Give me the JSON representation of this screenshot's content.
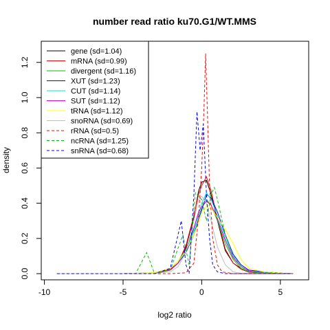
{
  "chart_data": {
    "type": "line",
    "title": "number read ratio ku70.G1/WT.MMS",
    "xlabel": "log2 ratio",
    "ylabel": "density",
    "xlim": [
      -10.2,
      6.8
    ],
    "ylim": [
      -0.035,
      1.32
    ],
    "xticks": [
      -10,
      -5,
      0,
      5
    ],
    "yticks": [
      0.0,
      0.2,
      0.4,
      0.6,
      0.8,
      1.0,
      1.2
    ],
    "grid": false,
    "legend_position": "top-left",
    "series": [
      {
        "name": "gene (sd=1.04)",
        "color": "#000000",
        "dash": false,
        "points": [
          [
            -9.2,
            0
          ],
          [
            -5,
            0
          ],
          [
            -3,
            0.002
          ],
          [
            -2,
            0.02
          ],
          [
            -1.5,
            0.06
          ],
          [
            -1,
            0.15
          ],
          [
            -0.5,
            0.32
          ],
          [
            -0.2,
            0.47
          ],
          [
            0,
            0.52
          ],
          [
            0.3,
            0.53
          ],
          [
            0.6,
            0.45
          ],
          [
            1,
            0.3
          ],
          [
            1.5,
            0.13
          ],
          [
            2,
            0.06
          ],
          [
            2.5,
            0.03
          ],
          [
            3,
            0.01
          ],
          [
            4,
            0.003
          ],
          [
            5.8,
            0
          ]
        ]
      },
      {
        "name": "mRNA (sd=0.99)",
        "color": "#ff0000",
        "dash": false,
        "points": [
          [
            -9.2,
            0
          ],
          [
            -5,
            0
          ],
          [
            -3,
            0.003
          ],
          [
            -2,
            0.02
          ],
          [
            -1.5,
            0.06
          ],
          [
            -1,
            0.16
          ],
          [
            -0.5,
            0.33
          ],
          [
            -0.2,
            0.45
          ],
          [
            0,
            0.5
          ],
          [
            0.3,
            0.55
          ],
          [
            0.6,
            0.47
          ],
          [
            1,
            0.31
          ],
          [
            1.5,
            0.14
          ],
          [
            2,
            0.06
          ],
          [
            2.5,
            0.025
          ],
          [
            3,
            0.008
          ],
          [
            4,
            0.002
          ],
          [
            5.8,
            0
          ]
        ]
      },
      {
        "name": "divergent (sd=1.16)",
        "color": "#00c000",
        "dash": false,
        "points": [
          [
            -9.2,
            0
          ],
          [
            -5,
            0
          ],
          [
            -3,
            0.005
          ],
          [
            -2,
            0.03
          ],
          [
            -1.5,
            0.07
          ],
          [
            -1,
            0.14
          ],
          [
            -0.5,
            0.25
          ],
          [
            -0.2,
            0.33
          ],
          [
            0,
            0.37
          ],
          [
            0.3,
            0.42
          ],
          [
            0.6,
            0.39
          ],
          [
            1,
            0.3
          ],
          [
            1.5,
            0.17
          ],
          [
            2,
            0.08
          ],
          [
            2.5,
            0.03
          ],
          [
            3,
            0.01
          ],
          [
            4,
            0.003
          ],
          [
            5.8,
            0
          ]
        ]
      },
      {
        "name": "XUT (sd=1.23)",
        "color": "#0000ff",
        "dash": false,
        "points": [
          [
            -9.2,
            0
          ],
          [
            -5,
            0
          ],
          [
            -3,
            0.004
          ],
          [
            -2,
            0.025
          ],
          [
            -1.5,
            0.06
          ],
          [
            -1,
            0.12
          ],
          [
            -0.5,
            0.22
          ],
          [
            -0.2,
            0.31
          ],
          [
            0,
            0.36
          ],
          [
            0.3,
            0.45
          ],
          [
            0.6,
            0.43
          ],
          [
            1,
            0.35
          ],
          [
            1.5,
            0.22
          ],
          [
            2,
            0.11
          ],
          [
            2.5,
            0.05
          ],
          [
            3,
            0.02
          ],
          [
            4,
            0.01
          ],
          [
            5.5,
            0
          ]
        ]
      },
      {
        "name": "CUT (sd=1.14)",
        "color": "#00e5e5",
        "dash": false,
        "points": [
          [
            -9.2,
            0
          ],
          [
            -5,
            0
          ],
          [
            -3,
            0.004
          ],
          [
            -2,
            0.025
          ],
          [
            -1.5,
            0.06
          ],
          [
            -1,
            0.13
          ],
          [
            -0.5,
            0.24
          ],
          [
            -0.2,
            0.34
          ],
          [
            0,
            0.4
          ],
          [
            0.3,
            0.46
          ],
          [
            0.6,
            0.42
          ],
          [
            1,
            0.33
          ],
          [
            1.5,
            0.2
          ],
          [
            2,
            0.1
          ],
          [
            2.5,
            0.04
          ],
          [
            3,
            0.015
          ],
          [
            4,
            0.005
          ],
          [
            5.5,
            0
          ]
        ]
      },
      {
        "name": "SUT (sd=1.12)",
        "color": "#e000e0",
        "dash": false,
        "points": [
          [
            -9.2,
            0
          ],
          [
            -5,
            0
          ],
          [
            -3,
            0.004
          ],
          [
            -2,
            0.025
          ],
          [
            -1.5,
            0.06
          ],
          [
            -1,
            0.14
          ],
          [
            -0.5,
            0.26
          ],
          [
            -0.2,
            0.35
          ],
          [
            0,
            0.38
          ],
          [
            0.3,
            0.41
          ],
          [
            0.6,
            0.39
          ],
          [
            1,
            0.31
          ],
          [
            1.5,
            0.19
          ],
          [
            2,
            0.09
          ],
          [
            2.5,
            0.04
          ],
          [
            3,
            0.015
          ],
          [
            4,
            0.004
          ],
          [
            5.5,
            0
          ]
        ]
      },
      {
        "name": "tRNA (sd=1.12)",
        "color": "#ffff00",
        "dash": false,
        "points": [
          [
            -9.2,
            0
          ],
          [
            -5,
            0
          ],
          [
            -3,
            0.005
          ],
          [
            -2,
            0.03
          ],
          [
            -1.5,
            0.07
          ],
          [
            -1,
            0.13
          ],
          [
            -0.5,
            0.22
          ],
          [
            -0.2,
            0.29
          ],
          [
            0,
            0.34
          ],
          [
            0.3,
            0.38
          ],
          [
            0.6,
            0.37
          ],
          [
            1,
            0.32
          ],
          [
            1.5,
            0.25
          ],
          [
            2,
            0.17
          ],
          [
            2.5,
            0.08
          ],
          [
            3,
            0.03
          ],
          [
            4,
            0.01
          ],
          [
            5.5,
            0
          ]
        ]
      },
      {
        "name": "snoRNA (sd=0.69)",
        "color": "#bebebe",
        "dash": false,
        "points": [
          [
            -9.2,
            0
          ],
          [
            -5,
            0
          ],
          [
            -3,
            0.002
          ],
          [
            -2,
            0.01
          ],
          [
            -1.5,
            0.04
          ],
          [
            -1,
            0.12
          ],
          [
            -0.5,
            0.3
          ],
          [
            -0.2,
            0.42
          ],
          [
            0,
            0.44
          ],
          [
            0.3,
            0.4
          ],
          [
            0.6,
            0.3
          ],
          [
            1,
            0.15
          ],
          [
            1.5,
            0.05
          ],
          [
            2,
            0.01
          ],
          [
            2.5,
            0.002
          ],
          [
            5.5,
            0
          ]
        ]
      },
      {
        "name": "rRNA (sd=0.5)",
        "color": "#ff0000",
        "dash": true,
        "points": [
          [
            -9.2,
            0
          ],
          [
            -2,
            0
          ],
          [
            -1,
            0.005
          ],
          [
            -0.5,
            0.06
          ],
          [
            -0.2,
            0.32
          ],
          [
            0,
            0.6
          ],
          [
            0.15,
            0.95
          ],
          [
            0.25,
            1.25
          ],
          [
            0.35,
            0.95
          ],
          [
            0.5,
            0.5
          ],
          [
            0.7,
            0.2
          ],
          [
            1,
            0.05
          ],
          [
            1.3,
            0.01
          ],
          [
            2,
            0
          ],
          [
            5.8,
            0
          ]
        ]
      },
      {
        "name": "ncRNA (sd=1.25)",
        "color": "#00c000",
        "dash": true,
        "points": [
          [
            -9.2,
            0
          ],
          [
            -4.2,
            0
          ],
          [
            -3.5,
            0.12
          ],
          [
            -3,
            0
          ],
          [
            -2,
            0.02
          ],
          [
            -1.2,
            0.22
          ],
          [
            -0.8,
            0.05
          ],
          [
            -0.4,
            0.46
          ],
          [
            0,
            0.42
          ],
          [
            0.3,
            0.3
          ],
          [
            0.6,
            0.45
          ],
          [
            0.8,
            0.49
          ],
          [
            1,
            0.42
          ],
          [
            1.5,
            0.22
          ],
          [
            2,
            0.1
          ],
          [
            2.5,
            0.04
          ],
          [
            3,
            0.01
          ],
          [
            5.8,
            0
          ]
        ]
      },
      {
        "name": "snRNA (sd=0.68)",
        "color": "#0000ff",
        "dash": true,
        "points": [
          [
            -9.2,
            0
          ],
          [
            -3,
            0
          ],
          [
            -2,
            0.03
          ],
          [
            -1.3,
            0.3
          ],
          [
            -1,
            0.05
          ],
          [
            -0.8,
            0
          ],
          [
            -0.5,
            0.45
          ],
          [
            -0.3,
            0.92
          ],
          [
            -0.1,
            0.7
          ],
          [
            0.1,
            0.85
          ],
          [
            0.3,
            0.45
          ],
          [
            0.5,
            0.2
          ],
          [
            0.7,
            0.05
          ],
          [
            1,
            0.01
          ],
          [
            1.5,
            0
          ],
          [
            5.8,
            0
          ]
        ]
      }
    ]
  }
}
